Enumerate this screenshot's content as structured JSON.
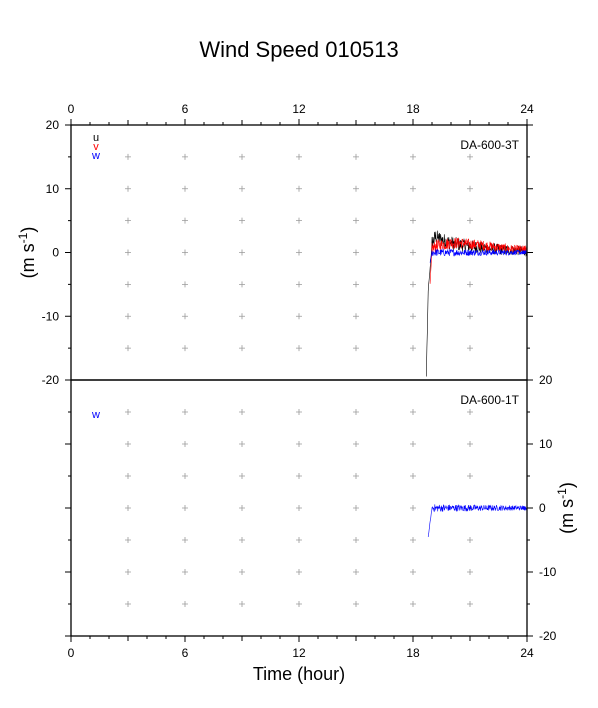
{
  "chart_data": {
    "type": "line",
    "title": "Wind Speed 010513",
    "xlabel": "Time (hour)",
    "x_ticks": [
      0,
      6,
      12,
      18,
      24
    ],
    "xlim": [
      0,
      24
    ],
    "panels": [
      {
        "station": "DA-600-3T",
        "ylabel_main": "(m s",
        "ylabel_sup": "-1",
        "ylabel_end": ")",
        "ylim": [
          -20,
          20
        ],
        "y_ticks": [
          20,
          10,
          0,
          -10,
          -20
        ],
        "y_axis_side": "left",
        "series": [
          {
            "name": "u",
            "color": "#000000",
            "x": [
              18.7,
              18.8,
              18.9,
              19.0,
              19.2,
              19.5,
              20.0,
              20.5,
              21.0,
              21.5,
              22.0,
              22.5,
              23.0,
              23.5,
              24.0
            ],
            "y": [
              -19.5,
              -6.0,
              -2.5,
              1.5,
              2.5,
              2.0,
              1.5,
              1.2,
              1.0,
              0.8,
              0.6,
              0.5,
              0.4,
              0.3,
              0.2
            ],
            "noise": 1.2
          },
          {
            "name": "v",
            "color": "#ff0000",
            "x": [
              18.9,
              19.0,
              19.2,
              19.5,
              20.0,
              20.5,
              21.0,
              21.5,
              22.0,
              22.5,
              23.0,
              23.5,
              24.0
            ],
            "y": [
              -5.0,
              0.5,
              1.0,
              1.2,
              1.5,
              1.5,
              1.3,
              1.2,
              1.0,
              0.8,
              0.6,
              0.5,
              0.5
            ],
            "noise": 1.0
          },
          {
            "name": "w",
            "color": "#0000ff",
            "x": [
              18.9,
              19.0,
              19.5,
              20.0,
              21.0,
              22.0,
              23.0,
              24.0
            ],
            "y": [
              -1.5,
              0.0,
              0.0,
              0.0,
              0.0,
              0.0,
              0.0,
              0.0
            ],
            "noise": 0.6
          }
        ]
      },
      {
        "station": "DA-600-1T",
        "ylabel_main": "(m s",
        "ylabel_sup": "-1",
        "ylabel_end": ")",
        "ylim": [
          -20,
          20
        ],
        "y_ticks": [
          20,
          10,
          0,
          -10,
          -20
        ],
        "y_axis_side": "right",
        "series": [
          {
            "name": "w",
            "color": "#0000ff",
            "x": [
              18.8,
              19.0,
              19.5,
              20.0,
              21.0,
              22.0,
              23.0,
              24.0
            ],
            "y": [
              -4.5,
              0.0,
              0.0,
              0.0,
              0.0,
              0.0,
              0.0,
              0.0
            ],
            "noise": 0.6
          }
        ]
      }
    ]
  }
}
